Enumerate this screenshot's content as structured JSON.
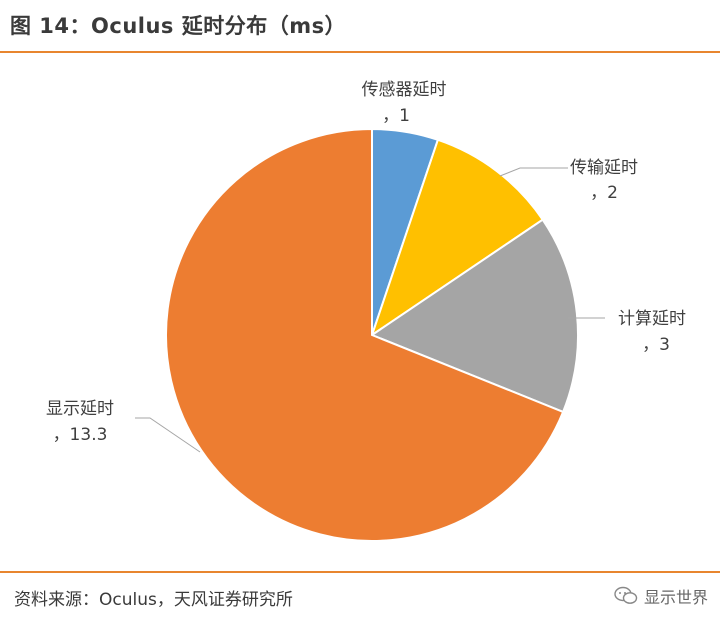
{
  "header": {
    "title": "图 14：Oculus 延时分布（ms）"
  },
  "chart_data": {
    "type": "pie",
    "title": "",
    "slices": [
      {
        "name": "传感器延时",
        "value": 1,
        "color": "#5b9bd5"
      },
      {
        "name": "传输延时",
        "value": 2,
        "color": "#ffc000"
      },
      {
        "name": "计算延时",
        "value": 3,
        "color": "#a5a5a5"
      },
      {
        "name": "显示延时",
        "value": 13.3,
        "color": "#ed7d31"
      }
    ],
    "labels": [
      {
        "name": "传感器延时",
        "value_text": "，1"
      },
      {
        "name": "传输延时",
        "value_text": "，2"
      },
      {
        "name": "计算延时",
        "value_text": "，3"
      },
      {
        "name": "显示延时",
        "value_text": "，13.3"
      }
    ]
  },
  "footer": {
    "source": "资料来源：Oculus，天风证券研究所",
    "watermark": "显示世界"
  }
}
